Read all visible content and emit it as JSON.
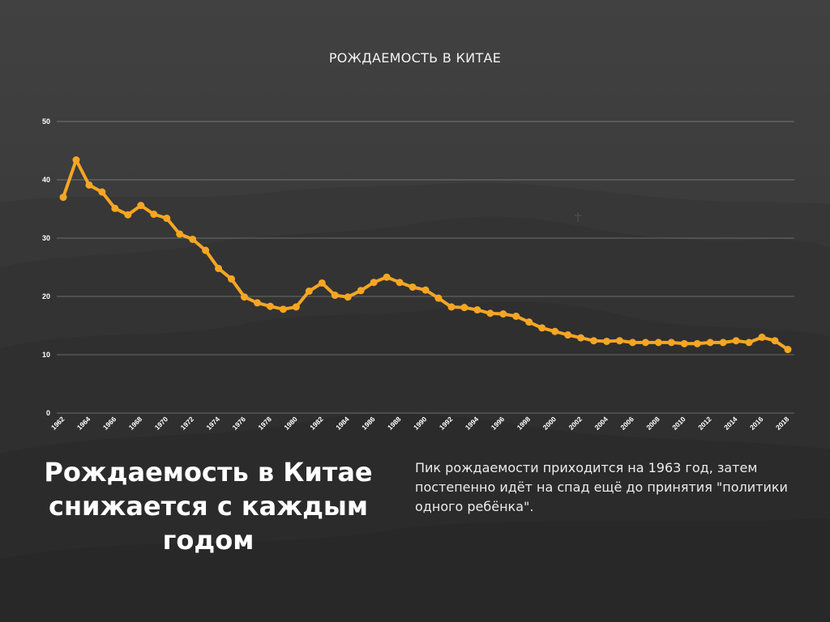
{
  "colors": {
    "line": "#f6a623",
    "background": "#3a3a3a",
    "text": "#ffffff",
    "grid": "rgba(255,255,255,0.28)"
  },
  "headline": "Рождаемость в Китае снижается с каждым годом",
  "description": "Пик рождаемости приходится на 1963 год, затем постепенно идёт на спад ещё до принятия \"политики одного ребёнка\".",
  "chart_data": {
    "type": "line",
    "title": "РОЖДАЕМОСТЬ В КИТАЕ",
    "xlabel": "",
    "ylabel": "",
    "ylim": [
      0,
      50
    ],
    "yticks": [
      0,
      10,
      20,
      30,
      40,
      50
    ],
    "grid": true,
    "legend": "none",
    "x": [
      1962,
      1963,
      1964,
      1965,
      1966,
      1967,
      1968,
      1969,
      1970,
      1971,
      1972,
      1973,
      1974,
      1975,
      1976,
      1977,
      1978,
      1979,
      1980,
      1981,
      1982,
      1983,
      1984,
      1985,
      1986,
      1987,
      1988,
      1989,
      1990,
      1991,
      1992,
      1993,
      1994,
      1995,
      1996,
      1997,
      1998,
      1999,
      2000,
      2001,
      2002,
      2003,
      2004,
      2005,
      2006,
      2007,
      2008,
      2009,
      2010,
      2011,
      2012,
      2013,
      2014,
      2015,
      2016,
      2017,
      2018
    ],
    "xtick_labels": [
      "1962",
      "1964",
      "1966",
      "1968",
      "1970",
      "1972",
      "1974",
      "1976",
      "1978",
      "1980",
      "1982",
      "1984",
      "1986",
      "1988",
      "1990",
      "1992",
      "1994",
      "1996",
      "1998",
      "2000",
      "2002",
      "2004",
      "2006",
      "2008",
      "2010",
      "2012",
      "2014",
      "2016",
      "2018"
    ],
    "series": [
      {
        "values": [
          37.0,
          43.4,
          39.1,
          37.9,
          35.1,
          34.0,
          35.6,
          34.1,
          33.4,
          30.7,
          29.8,
          27.9,
          24.8,
          23.0,
          19.9,
          18.9,
          18.3,
          17.8,
          18.2,
          20.9,
          22.3,
          20.2,
          19.9,
          21.0,
          22.4,
          23.3,
          22.4,
          21.6,
          21.1,
          19.7,
          18.2,
          18.1,
          17.7,
          17.1,
          17.0,
          16.6,
          15.6,
          14.6,
          14.0,
          13.4,
          12.9,
          12.4,
          12.3,
          12.4,
          12.1,
          12.1,
          12.1,
          12.1,
          11.9,
          11.9,
          12.1,
          12.1,
          12.4,
          12.1,
          13.0,
          12.4,
          10.9
        ]
      }
    ]
  }
}
